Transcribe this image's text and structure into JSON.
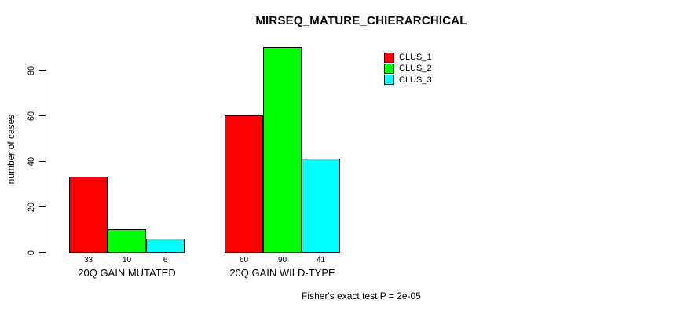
{
  "chart_data": {
    "type": "bar",
    "title": "MIRSEQ_MATURE_CHIERARCHICAL",
    "ylabel": "number of cases",
    "xlabel": "",
    "footnote": "Fisher's exact test P = 2e-05",
    "categories": [
      "20Q GAIN MUTATED",
      "20Q GAIN WILD-TYPE"
    ],
    "series": [
      {
        "name": "CLUS_1",
        "color": "#ff0000",
        "values": [
          33,
          60
        ]
      },
      {
        "name": "CLUS_2",
        "color": "#00ff00",
        "values": [
          10,
          90
        ]
      },
      {
        "name": "CLUS_3",
        "color": "#00ffff",
        "values": [
          6,
          41
        ]
      }
    ],
    "yticks": [
      0,
      20,
      40,
      60,
      80
    ],
    "ylim": [
      0,
      80
    ],
    "bar_value_labels": [
      [
        "33",
        "10",
        "6"
      ],
      [
        "60",
        "90",
        "41"
      ]
    ],
    "legend_position": "top-right",
    "grid": false,
    "background": "#ffffff",
    "axis_color": "#000000"
  }
}
